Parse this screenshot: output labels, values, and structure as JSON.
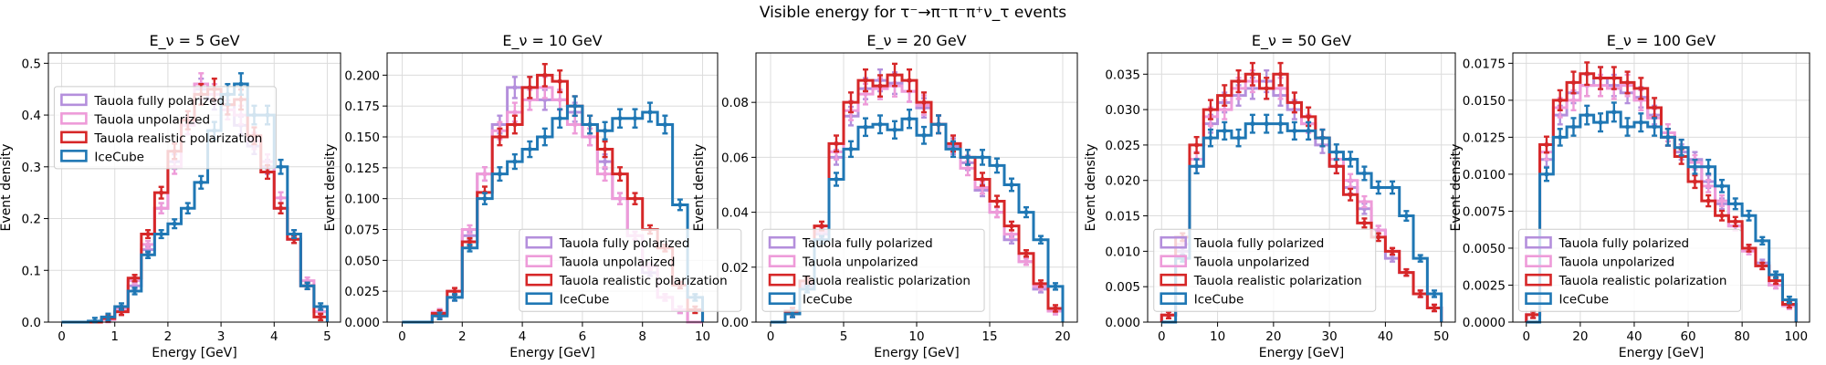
{
  "suptitle": "Visible energy for τ⁻→π⁻π⁻π⁺ν_τ events",
  "legend_location": "lower-left",
  "series_styles": [
    {
      "name": "Tauola fully polarized",
      "color": "#b48fdc"
    },
    {
      "name": "Tauola unpolarized",
      "color": "#ee9bd9"
    },
    {
      "name": "Tauola realistic polarization",
      "color": "#d62728"
    },
    {
      "name": "IceCube",
      "color": "#1f77b4"
    }
  ],
  "chart_data": [
    {
      "type": "line",
      "title": "E_ν = 5 GeV",
      "xlabel": "Energy [GeV]",
      "ylabel": "Event density",
      "xlim": [
        -0.25,
        5.25
      ],
      "ylim": [
        0,
        0.52
      ],
      "xticks": [
        "0",
        "1",
        "2",
        "3",
        "4",
        "5"
      ],
      "yticks": [
        "0.0",
        "0.1",
        "0.2",
        "0.3",
        "0.4",
        "0.5"
      ],
      "legend_pos": [
        0.02,
        0.57
      ],
      "bins": {
        "start": 0.0,
        "width": 0.25,
        "count": 20
      },
      "grid": true,
      "series": [
        {
          "name": "Tauola fully polarized",
          "values": [
            0.0,
            0.0,
            0.0,
            0.005,
            0.02,
            0.07,
            0.14,
            0.22,
            0.31,
            0.38,
            0.45,
            0.43,
            0.42,
            0.38,
            0.34,
            0.3,
            0.22,
            0.16,
            0.07,
            0.02
          ]
        },
        {
          "name": "Tauola unpolarized",
          "values": [
            0.0,
            0.0,
            0.0,
            0.005,
            0.025,
            0.08,
            0.15,
            0.22,
            0.3,
            0.38,
            0.46,
            0.44,
            0.41,
            0.4,
            0.35,
            0.31,
            0.24,
            0.17,
            0.08,
            0.02
          ]
        },
        {
          "name": "Tauola realistic polarization",
          "values": [
            0.0,
            0.0,
            0.0,
            0.007,
            0.02,
            0.085,
            0.17,
            0.25,
            0.33,
            0.39,
            0.44,
            0.45,
            0.42,
            0.43,
            0.36,
            0.29,
            0.22,
            0.16,
            0.07,
            0.01
          ]
        },
        {
          "name": "IceCube",
          "values": [
            0.0,
            0.0,
            0.002,
            0.01,
            0.03,
            0.06,
            0.13,
            0.17,
            0.19,
            0.22,
            0.27,
            0.37,
            0.44,
            0.46,
            0.4,
            0.4,
            0.3,
            0.17,
            0.07,
            0.03
          ]
        }
      ]
    },
    {
      "type": "line",
      "title": "E_ν = 10 GeV",
      "xlabel": "Energy [GeV]",
      "ylabel": "Event density",
      "xlim": [
        -0.5,
        10.5
      ],
      "ylim": [
        0,
        0.218
      ],
      "xticks": [
        "0",
        "2",
        "4",
        "6",
        "8",
        "10"
      ],
      "yticks": [
        "0.000",
        "0.025",
        "0.050",
        "0.075",
        "0.100",
        "0.125",
        "0.150",
        "0.175",
        "0.200"
      ],
      "legend_pos": [
        0.4,
        0.04
      ],
      "bins": {
        "start": 0.0,
        "width": 0.5,
        "count": 20
      },
      "grid": true,
      "series": [
        {
          "name": "Tauola fully polarized",
          "values": [
            0.0,
            0.0,
            0.006,
            0.02,
            0.07,
            0.12,
            0.16,
            0.19,
            0.19,
            0.18,
            0.18,
            0.17,
            0.15,
            0.13,
            0.1,
            0.07,
            0.04,
            0.02,
            0.01,
            0.0
          ]
        },
        {
          "name": "Tauola unpolarized",
          "values": [
            0.0,
            0.0,
            0.008,
            0.025,
            0.075,
            0.12,
            0.155,
            0.17,
            0.18,
            0.19,
            0.18,
            0.16,
            0.15,
            0.12,
            0.1,
            0.07,
            0.045,
            0.02,
            0.01,
            0.0
          ]
        },
        {
          "name": "Tauola realistic polarization",
          "values": [
            0.0,
            0.0,
            0.007,
            0.025,
            0.065,
            0.105,
            0.15,
            0.16,
            0.19,
            0.2,
            0.195,
            0.175,
            0.16,
            0.14,
            0.12,
            0.1,
            0.075,
            0.06,
            0.03,
            0.01
          ]
        },
        {
          "name": "IceCube",
          "values": [
            0.0,
            0.0,
            0.005,
            0.02,
            0.06,
            0.1,
            0.12,
            0.13,
            0.14,
            0.15,
            0.165,
            0.175,
            0.16,
            0.155,
            0.165,
            0.165,
            0.17,
            0.16,
            0.095,
            0.02
          ]
        }
      ]
    },
    {
      "type": "line",
      "title": "E_ν = 20 GeV",
      "xlabel": "Energy [GeV]",
      "ylabel": "Event density",
      "xlim": [
        -1,
        21
      ],
      "ylim": [
        0,
        0.098
      ],
      "xticks": [
        "0",
        "5",
        "10",
        "15",
        "20"
      ],
      "yticks": [
        "0.00",
        "0.02",
        "0.04",
        "0.06",
        "0.08"
      ],
      "legend_pos": [
        0.02,
        0.04
      ],
      "bins": {
        "start": 0.0,
        "width": 1.0,
        "count": 20
      },
      "grid": true,
      "series": [
        {
          "name": "Tauola fully polarized",
          "values": [
            0.0,
            0.003,
            0.013,
            0.032,
            0.06,
            0.075,
            0.085,
            0.088,
            0.087,
            0.084,
            0.078,
            0.072,
            0.064,
            0.058,
            0.048,
            0.04,
            0.03,
            0.022,
            0.012,
            0.004
          ]
        },
        {
          "name": "Tauola unpolarized",
          "values": [
            0.0,
            0.003,
            0.014,
            0.033,
            0.062,
            0.077,
            0.083,
            0.085,
            0.086,
            0.084,
            0.079,
            0.072,
            0.065,
            0.056,
            0.049,
            0.04,
            0.032,
            0.022,
            0.013,
            0.004
          ]
        },
        {
          "name": "Tauola realistic polarization",
          "values": [
            0.0,
            0.004,
            0.015,
            0.035,
            0.065,
            0.08,
            0.088,
            0.086,
            0.09,
            0.088,
            0.08,
            0.072,
            0.065,
            0.06,
            0.052,
            0.044,
            0.035,
            0.025,
            0.014,
            0.005
          ]
        },
        {
          "name": "IceCube",
          "values": [
            0.0,
            0.003,
            0.012,
            0.03,
            0.052,
            0.063,
            0.071,
            0.072,
            0.07,
            0.074,
            0.068,
            0.072,
            0.063,
            0.06,
            0.06,
            0.057,
            0.05,
            0.04,
            0.03,
            0.013
          ]
        }
      ]
    },
    {
      "type": "line",
      "title": "E_ν = 50 GeV",
      "xlabel": "Energy [GeV]",
      "ylabel": "Event density",
      "xlim": [
        -2.5,
        52.5
      ],
      "ylim": [
        0,
        0.038
      ],
      "xticks": [
        "0",
        "10",
        "20",
        "30",
        "40",
        "50"
      ],
      "yticks": [
        "0.000",
        "0.005",
        "0.010",
        "0.015",
        "0.020",
        "0.025",
        "0.030",
        "0.035"
      ],
      "legend_pos": [
        0.02,
        0.04
      ],
      "bins": {
        "start": 0.0,
        "width": 2.5,
        "count": 20
      },
      "grid": true,
      "series": [
        {
          "name": "Tauola fully polarized",
          "values": [
            0.001,
            0.01,
            0.022,
            0.028,
            0.031,
            0.032,
            0.033,
            0.034,
            0.032,
            0.03,
            0.028,
            0.025,
            0.022,
            0.019,
            0.016,
            0.013,
            0.009,
            0.007,
            0.004,
            0.002
          ]
        },
        {
          "name": "Tauola unpolarized",
          "values": [
            0.001,
            0.011,
            0.023,
            0.029,
            0.03,
            0.033,
            0.034,
            0.033,
            0.033,
            0.031,
            0.028,
            0.026,
            0.023,
            0.02,
            0.017,
            0.013,
            0.01,
            0.007,
            0.004,
            0.002
          ]
        },
        {
          "name": "Tauola realistic polarization",
          "values": [
            0.001,
            0.012,
            0.025,
            0.03,
            0.032,
            0.034,
            0.035,
            0.033,
            0.035,
            0.031,
            0.029,
            0.026,
            0.022,
            0.018,
            0.014,
            0.012,
            0.01,
            0.007,
            0.004,
            0.002
          ]
        },
        {
          "name": "IceCube",
          "values": [
            0.0,
            0.009,
            0.022,
            0.026,
            0.027,
            0.026,
            0.028,
            0.028,
            0.028,
            0.027,
            0.027,
            0.026,
            0.024,
            0.023,
            0.021,
            0.019,
            0.019,
            0.015,
            0.009,
            0.004
          ]
        }
      ]
    },
    {
      "type": "line",
      "title": "E_ν = 100 GeV",
      "xlabel": "Energy [GeV]",
      "ylabel": "Event density",
      "xlim": [
        -5,
        105
      ],
      "ylim": [
        0,
        0.0182
      ],
      "xticks": [
        "0",
        "20",
        "40",
        "60",
        "80",
        "100"
      ],
      "yticks": [
        "0.0000",
        "0.0025",
        "0.0050",
        "0.0075",
        "0.0100",
        "0.0125",
        "0.0150",
        "0.0175"
      ],
      "legend_pos": [
        0.02,
        0.04
      ],
      "bins": {
        "start": 0.0,
        "width": 5.0,
        "count": 20
      },
      "grid": true,
      "series": [
        {
          "name": "Tauola fully polarized",
          "values": [
            0.0005,
            0.011,
            0.014,
            0.0155,
            0.016,
            0.0165,
            0.016,
            0.0155,
            0.0152,
            0.014,
            0.0125,
            0.0115,
            0.011,
            0.0095,
            0.008,
            0.0065,
            0.005,
            0.004,
            0.0025,
            0.0012
          ]
        },
        {
          "name": "Tauola unpolarized",
          "values": [
            0.0005,
            0.0115,
            0.0145,
            0.015,
            0.016,
            0.016,
            0.0158,
            0.016,
            0.015,
            0.0138,
            0.0128,
            0.0118,
            0.0108,
            0.0092,
            0.0082,
            0.0065,
            0.0048,
            0.0038,
            0.0025,
            0.0011
          ]
        },
        {
          "name": "Tauola realistic polarization",
          "values": [
            0.0005,
            0.012,
            0.015,
            0.0162,
            0.0168,
            0.0165,
            0.0165,
            0.0162,
            0.0158,
            0.0145,
            0.0125,
            0.0112,
            0.0095,
            0.0082,
            0.0072,
            0.0068,
            0.005,
            0.0038,
            0.0028,
            0.0012
          ]
        },
        {
          "name": "IceCube",
          "values": [
            0.0,
            0.01,
            0.0125,
            0.0132,
            0.014,
            0.0135,
            0.0142,
            0.0132,
            0.0135,
            0.0132,
            0.0125,
            0.0118,
            0.0105,
            0.0105,
            0.0092,
            0.008,
            0.0072,
            0.0055,
            0.0032,
            0.0015
          ]
        }
      ]
    }
  ]
}
